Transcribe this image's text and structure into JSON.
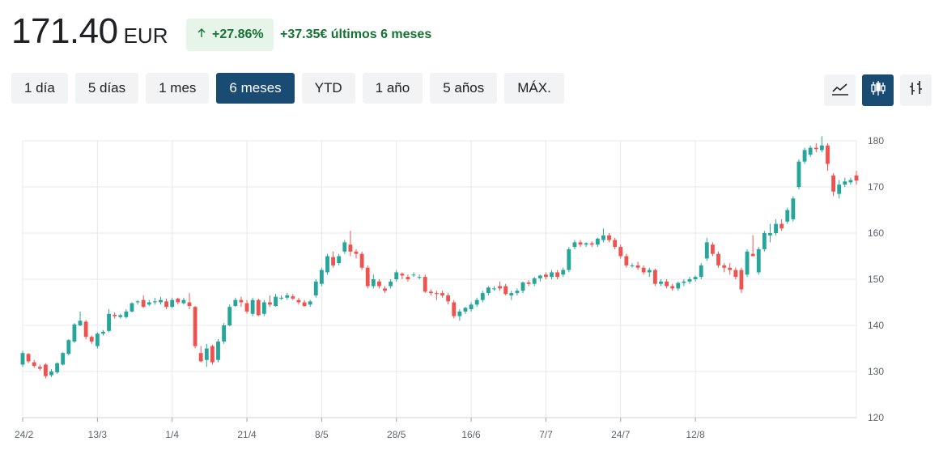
{
  "header": {
    "price": "171.40",
    "currency": "EUR",
    "change_pct": "+27.86%",
    "change_text": "+37.35€ últimos 6 meses",
    "up_icon": "arrow-up-icon"
  },
  "ranges": [
    {
      "label": "1 día",
      "active": false
    },
    {
      "label": "5 días",
      "active": false
    },
    {
      "label": "1 mes",
      "active": false
    },
    {
      "label": "6 meses",
      "active": true
    },
    {
      "label": "YTD",
      "active": false
    },
    {
      "label": "1 año",
      "active": false
    },
    {
      "label": "5 años",
      "active": false
    },
    {
      "label": "MÁX.",
      "active": false
    }
  ],
  "tools": [
    {
      "icon": "line-chart-icon",
      "active": false
    },
    {
      "icon": "candlestick-icon",
      "active": true
    },
    {
      "icon": "ohlc-icon",
      "active": false
    }
  ],
  "colors": {
    "up": "#26a69a",
    "down": "#ef5350",
    "accent": "#1a4b73",
    "positive_text": "#137333",
    "grid": "#e8e8e8"
  },
  "chart_data": {
    "type": "candlestick",
    "title": "",
    "ylim": [
      120,
      180
    ],
    "yticks": [
      120,
      130,
      140,
      150,
      160,
      170,
      180
    ],
    "xtick_labels": [
      {
        "label": "24/2",
        "index": 0
      },
      {
        "label": "13/3",
        "index": 13
      },
      {
        "label": "1/4",
        "index": 26
      },
      {
        "label": "21/4",
        "index": 39
      },
      {
        "label": "8/5",
        "index": 52
      },
      {
        "label": "28/5",
        "index": 65
      },
      {
        "label": "16/6",
        "index": 78
      },
      {
        "label": "7/7",
        "index": 91
      },
      {
        "label": "24/7",
        "index": 104
      },
      {
        "label": "12/8",
        "index": 117
      }
    ],
    "ohlc": [
      [
        131.5,
        134.5,
        131.0,
        134.0
      ],
      [
        133.8,
        134.0,
        131.8,
        132.2
      ],
      [
        132.0,
        132.5,
        130.8,
        131.2
      ],
      [
        131.0,
        131.5,
        130.2,
        130.6
      ],
      [
        131.5,
        131.8,
        128.5,
        129.0
      ],
      [
        129.2,
        130.5,
        128.8,
        130.0
      ],
      [
        129.8,
        132.0,
        129.5,
        131.8
      ],
      [
        131.5,
        134.2,
        131.3,
        134.0
      ],
      [
        133.8,
        137.0,
        133.5,
        136.8
      ],
      [
        136.5,
        140.5,
        136.2,
        140.2
      ],
      [
        140.0,
        143.0,
        139.8,
        141.0
      ],
      [
        140.8,
        141.2,
        137.0,
        137.5
      ],
      [
        137.5,
        137.8,
        136.0,
        136.5
      ],
      [
        135.5,
        138.5,
        135.0,
        138.2
      ],
      [
        138.2,
        139.0,
        137.8,
        138.6
      ],
      [
        138.8,
        143.5,
        138.5,
        142.5
      ],
      [
        142.3,
        142.8,
        141.5,
        142.0
      ],
      [
        141.8,
        142.5,
        141.5,
        142.2
      ],
      [
        141.8,
        143.5,
        141.5,
        143.0
      ],
      [
        143.0,
        145.0,
        142.8,
        144.8
      ],
      [
        145.0,
        145.5,
        144.5,
        145.2
      ],
      [
        145.5,
        146.5,
        143.8,
        144.0
      ],
      [
        144.5,
        145.5,
        144.2,
        145.0
      ],
      [
        145.0,
        146.0,
        144.5,
        145.2
      ],
      [
        145.0,
        146.2,
        144.5,
        145.5
      ],
      [
        145.2,
        145.8,
        143.5,
        144.0
      ],
      [
        144.0,
        146.0,
        143.8,
        145.5
      ],
      [
        145.8,
        146.0,
        144.5,
        145.0
      ],
      [
        144.8,
        146.0,
        144.5,
        145.5
      ],
      [
        145.0,
        147.0,
        143.5,
        144.2
      ],
      [
        144.0,
        144.2,
        135.0,
        135.5
      ],
      [
        134.0,
        135.5,
        132.0,
        132.2
      ],
      [
        132.5,
        136.0,
        131.0,
        135.0
      ],
      [
        135.5,
        135.8,
        131.5,
        132.0
      ],
      [
        132.5,
        137.0,
        132.0,
        136.5
      ],
      [
        136.5,
        140.5,
        136.0,
        140.0
      ],
      [
        140.0,
        144.5,
        139.8,
        144.0
      ],
      [
        144.2,
        146.0,
        144.0,
        145.5
      ],
      [
        145.5,
        146.2,
        144.0,
        145.0
      ],
      [
        144.8,
        145.5,
        142.5,
        143.0
      ],
      [
        142.5,
        146.0,
        142.0,
        145.5
      ],
      [
        145.5,
        145.8,
        142.0,
        142.2
      ],
      [
        142.5,
        145.5,
        142.0,
        145.0
      ],
      [
        145.0,
        146.5,
        144.0,
        144.5
      ],
      [
        144.2,
        146.8,
        144.0,
        146.2
      ],
      [
        145.8,
        146.5,
        145.5,
        146.0
      ],
      [
        146.0,
        147.0,
        145.5,
        146.5
      ],
      [
        146.3,
        146.8,
        145.5,
        145.8
      ],
      [
        145.5,
        146.0,
        144.5,
        145.0
      ],
      [
        145.0,
        145.5,
        144.0,
        144.2
      ],
      [
        144.5,
        145.5,
        144.0,
        145.2
      ],
      [
        146.5,
        150.0,
        146.0,
        149.5
      ],
      [
        149.0,
        152.5,
        148.5,
        152.0
      ],
      [
        151.5,
        155.5,
        151.0,
        155.0
      ],
      [
        154.8,
        156.0,
        152.5,
        153.0
      ],
      [
        153.5,
        155.5,
        153.0,
        155.0
      ],
      [
        156.0,
        158.5,
        155.5,
        158.0
      ],
      [
        157.5,
        160.5,
        155.0,
        156.0
      ],
      [
        156.0,
        156.5,
        154.5,
        155.5
      ],
      [
        155.5,
        156.0,
        152.0,
        152.5
      ],
      [
        152.5,
        153.0,
        148.0,
        148.5
      ],
      [
        148.5,
        151.0,
        148.0,
        150.0
      ],
      [
        149.5,
        150.0,
        148.0,
        148.5
      ],
      [
        148.0,
        148.5,
        147.0,
        147.5
      ],
      [
        148.5,
        150.0,
        148.0,
        149.5
      ],
      [
        150.0,
        152.0,
        149.5,
        151.5
      ],
      [
        151.2,
        151.5,
        150.0,
        150.8
      ],
      [
        150.5,
        151.0,
        149.5,
        150.0
      ],
      [
        151.0,
        151.5,
        150.5,
        151.0
      ],
      [
        150.5,
        151.0,
        150.0,
        150.5
      ],
      [
        150.5,
        151.0,
        147.0,
        147.3
      ],
      [
        147.3,
        147.8,
        146.5,
        147.0
      ],
      [
        147.0,
        147.5,
        145.5,
        146.8
      ],
      [
        147.0,
        147.5,
        146.0,
        146.5
      ],
      [
        146.5,
        147.0,
        144.5,
        145.2
      ],
      [
        145.0,
        145.5,
        141.5,
        142.0
      ],
      [
        142.0,
        143.5,
        141.0,
        143.0
      ],
      [
        143.0,
        144.0,
        142.5,
        143.8
      ],
      [
        143.5,
        145.0,
        143.0,
        144.5
      ],
      [
        144.5,
        146.0,
        144.0,
        145.5
      ],
      [
        145.5,
        147.5,
        145.0,
        147.0
      ],
      [
        147.0,
        148.5,
        146.5,
        148.2
      ],
      [
        148.0,
        148.5,
        147.5,
        148.0
      ],
      [
        148.5,
        149.5,
        147.5,
        148.0
      ],
      [
        148.5,
        149.0,
        146.5,
        146.8
      ],
      [
        146.5,
        147.5,
        145.5,
        147.0
      ],
      [
        147.0,
        148.0,
        146.5,
        147.5
      ],
      [
        147.5,
        149.5,
        147.0,
        149.3
      ],
      [
        149.3,
        149.8,
        148.5,
        149.0
      ],
      [
        149.0,
        150.5,
        148.5,
        150.2
      ],
      [
        150.2,
        151.0,
        149.5,
        150.8
      ],
      [
        151.0,
        151.5,
        150.0,
        150.5
      ],
      [
        150.5,
        152.0,
        150.0,
        151.5
      ],
      [
        151.5,
        152.0,
        150.0,
        150.5
      ],
      [
        151.0,
        152.5,
        150.5,
        152.0
      ],
      [
        152.0,
        157.0,
        151.5,
        156.5
      ],
      [
        157.0,
        158.5,
        156.5,
        158.0
      ],
      [
        158.0,
        158.5,
        157.0,
        157.5
      ],
      [
        157.5,
        158.0,
        157.0,
        157.8
      ],
      [
        157.8,
        158.2,
        157.0,
        157.5
      ],
      [
        157.5,
        159.0,
        157.0,
        158.8
      ],
      [
        158.5,
        161.0,
        158.0,
        159.5
      ],
      [
        159.5,
        160.0,
        158.0,
        158.5
      ],
      [
        158.5,
        159.0,
        156.5,
        157.0
      ],
      [
        157.0,
        157.5,
        154.5,
        155.0
      ],
      [
        155.0,
        155.5,
        152.5,
        153.0
      ],
      [
        153.0,
        153.5,
        152.5,
        153.0
      ],
      [
        153.0,
        153.8,
        152.0,
        152.5
      ],
      [
        152.5,
        153.0,
        151.0,
        151.5
      ],
      [
        151.5,
        152.5,
        150.5,
        152.0
      ],
      [
        152.0,
        152.3,
        148.5,
        149.0
      ],
      [
        149.0,
        150.0,
        148.5,
        149.5
      ],
      [
        149.5,
        150.0,
        148.0,
        148.5
      ],
      [
        148.5,
        149.0,
        147.5,
        148.0
      ]
    ],
    "ohlc_tail": [
      [
        148.0,
        149.5,
        147.5,
        149.2
      ],
      [
        149.2,
        150.0,
        148.5,
        149.5
      ],
      [
        149.5,
        150.5,
        149.0,
        150.0
      ],
      [
        150.0,
        150.8,
        149.5,
        150.5
      ],
      [
        150.5,
        153.5,
        150.0,
        153.0
      ],
      [
        154.5,
        159.0,
        154.0,
        158.0
      ],
      [
        157.5,
        158.0,
        155.0,
        155.5
      ],
      [
        155.5,
        156.0,
        152.5,
        153.0
      ],
      [
        153.0,
        153.5,
        151.5,
        152.5
      ],
      [
        152.5,
        153.5,
        151.0,
        152.0
      ],
      [
        152.0,
        152.5,
        150.0,
        150.5
      ],
      [
        152.0,
        152.5,
        147.0,
        147.8
      ],
      [
        151.0,
        156.5,
        150.5,
        156.0
      ],
      [
        155.5,
        159.5,
        155.0,
        155.0
      ],
      [
        151.5,
        157.0,
        151.0,
        156.5
      ],
      [
        156.5,
        160.5,
        156.0,
        160.0
      ],
      [
        159.5,
        162.0,
        158.0,
        160.0
      ],
      [
        160.0,
        163.0,
        159.5,
        162.0
      ],
      [
        162.0,
        163.0,
        160.5,
        161.0
      ],
      [
        162.5,
        165.5,
        162.0,
        165.0
      ],
      [
        163.0,
        168.0,
        162.5,
        167.5
      ],
      [
        170.0,
        176.0,
        169.5,
        175.5
      ],
      [
        175.5,
        178.5,
        175.0,
        178.0
      ],
      [
        177.0,
        179.0,
        176.5,
        178.5
      ],
      [
        178.5,
        179.5,
        177.5,
        178.2
      ],
      [
        178.0,
        181.0,
        177.5,
        179.0
      ],
      [
        179.0,
        179.5,
        173.5,
        175.0
      ],
      [
        172.5,
        173.0,
        168.0,
        169.0
      ],
      [
        168.5,
        171.5,
        167.5,
        170.5
      ],
      [
        170.5,
        172.0,
        170.0,
        171.2
      ],
      [
        171.0,
        172.0,
        170.5,
        171.5
      ],
      [
        172.5,
        173.5,
        170.5,
        171.4
      ]
    ]
  }
}
